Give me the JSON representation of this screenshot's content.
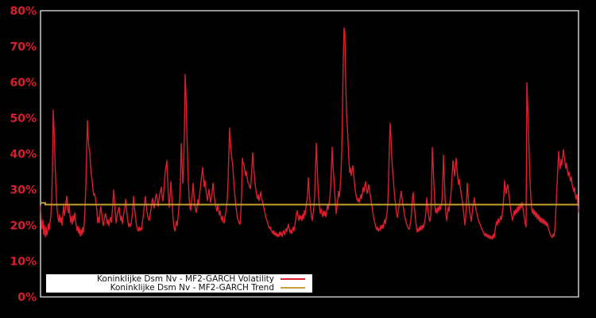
{
  "chart_data": {
    "type": "line",
    "title": "",
    "xlabel": "",
    "ylabel": "",
    "grid": false,
    "background_color": "#000000",
    "plot_border_color": "#c9c9c9",
    "x_axis": {
      "tick_labels_visible": false
    },
    "y_axis": {
      "min": 0,
      "max": 80,
      "tick_step": 10,
      "unit": "%",
      "tick_labels": [
        "0%",
        "10%",
        "20%",
        "30%",
        "40%",
        "50%",
        "60%",
        "70%",
        "80%"
      ],
      "tick_label_color": "#d91f2e"
    },
    "legend": {
      "position": "lower-left",
      "background": "#ffffff",
      "entries": [
        {
          "label": "Koninklijke Dsm Nv - MF2-GARCH Volatility",
          "color": "#d91f2e"
        },
        {
          "label": "Koninklijke Dsm Nv - MF2-GARCH Trend",
          "color": "#c7a130"
        }
      ]
    },
    "series": [
      {
        "name": "Koninklijke Dsm Nv - MF2-GARCH Volatility",
        "color": "#d91f2e",
        "unit": "%",
        "values": [
          25.5,
          21.5,
          19.0,
          21.5,
          17.5,
          20.0,
          16.8,
          19.5,
          17.2,
          18.5,
          20.5,
          18.8,
          21.0,
          22.5,
          27.0,
          36.0,
          52.2,
          47.0,
          40.0,
          33.0,
          27.5,
          24.0,
          22.0,
          21.0,
          23.0,
          20.8,
          22.2,
          20.0,
          23.0,
          25.5,
          22.8,
          24.0,
          26.5,
          28.2,
          25.0,
          23.5,
          25.8,
          23.0,
          20.8,
          22.5,
          20.3,
          22.8,
          21.2,
          23.5,
          21.8,
          19.8,
          18.5,
          19.8,
          17.8,
          19.2,
          17.0,
          18.8,
          17.3,
          19.5,
          18.0,
          20.5,
          24.5,
          31.0,
          40.0,
          49.3,
          44.5,
          41.5,
          40.5,
          36.5,
          34.0,
          32.5,
          30.0,
          28.5,
          28.8,
          27.8,
          26.0,
          24.0,
          20.7,
          22.2,
          20.8,
          24.3,
          25.2,
          23.2,
          21.3,
          19.9,
          21.2,
          22.8,
          23.3,
          21.8,
          20.4,
          21.6,
          19.9,
          21.2,
          22.2,
          20.8,
          23.2,
          26.2,
          29.9,
          27.2,
          23.8,
          20.7,
          22.2,
          23.6,
          24.6,
          25.1,
          22.8,
          21.3,
          22.6,
          20.4,
          22.2,
          23.6,
          24.8,
          27.3,
          25.3,
          22.8,
          20.8,
          19.6,
          20.6,
          19.7,
          20.4,
          22.2,
          24.2,
          28.1,
          25.8,
          23.3,
          21.3,
          19.8,
          18.9,
          18.4,
          19.6,
          18.5,
          19.3,
          18.7,
          20.6,
          22.2,
          24.2,
          26.6,
          28.1,
          25.8,
          23.8,
          22.4,
          21.7,
          21.4,
          23.2,
          24.6,
          26.2,
          27.6,
          26.3,
          24.8,
          26.6,
          28.2,
          28.8,
          26.8,
          25.3,
          27.2,
          28.6,
          29.6,
          30.7,
          28.3,
          26.8,
          29.2,
          32.2,
          35.2,
          36.6,
          38.1,
          32.8,
          27.8,
          25.1,
          28.2,
          32.2,
          28.8,
          24.8,
          21.3,
          19.4,
          18.4,
          19.6,
          21.2,
          19.9,
          22.2,
          24.6,
          27.2,
          31.5,
          42.9,
          37.5,
          31.8,
          35.5,
          46.0,
          62.2,
          57.0,
          47.5,
          39.5,
          32.5,
          27.8,
          24.9,
          24.2,
          26.2,
          28.8,
          31.8,
          28.8,
          25.8,
          24.4,
          23.6,
          25.2,
          27.2,
          25.9,
          28.2,
          30.2,
          32.2,
          34.2,
          36.2,
          33.3,
          30.8,
          32.5,
          30.3,
          28.4,
          26.9,
          28.6,
          30.1,
          27.9,
          26.4,
          28.1,
          29.6,
          31.8,
          29.4,
          27.4,
          25.9,
          24.9,
          23.9,
          25.6,
          24.4,
          22.9,
          24.1,
          22.4,
          21.4,
          22.6,
          20.9,
          20.7,
          22.2,
          23.6,
          25.2,
          27.2,
          32.5,
          40.5,
          47.2,
          43.5,
          40.5,
          38.2,
          36.6,
          32.8,
          29.8,
          27.3,
          25.1,
          23.4,
          21.9,
          21.3,
          20.6,
          20.3,
          23.2,
          28.5,
          38.8,
          37.4,
          36.8,
          35.4,
          33.9,
          35.1,
          33.4,
          31.9,
          31.8,
          30.7,
          30.3,
          32.2,
          36.2,
          40.3,
          36.8,
          34.3,
          31.8,
          29.9,
          28.4,
          27.4,
          28.6,
          26.9,
          27.9,
          29.4,
          27.9,
          26.9,
          25.9,
          24.9,
          23.9,
          22.9,
          21.9,
          21.4,
          20.4,
          19.8,
          19.2,
          19.6,
          18.8,
          18.3,
          17.8,
          18.6,
          17.4,
          18.1,
          17.1,
          17.9,
          16.8,
          17.6,
          16.9,
          18.2,
          17.2,
          18.1,
          16.9,
          17.8,
          18.6,
          17.4,
          18.2,
          19.1,
          18.2,
          19.6,
          20.3,
          18.9,
          17.9,
          18.8,
          17.7,
          18.6,
          19.6,
          18.4,
          19.9,
          21.6,
          23.3,
          24.1,
          22.4,
          21.4,
          22.9,
          21.7,
          22.6,
          21.4,
          23.1,
          21.9,
          24.1,
          22.9,
          25.1,
          26.6,
          28.1,
          33.3,
          29.8,
          26.8,
          24.3,
          22.4,
          21.4,
          23.2,
          25.2,
          28.5,
          35.5,
          43.0,
          37.5,
          31.5,
          27.8,
          25.3,
          23.3,
          24.6,
          23.4,
          22.4,
          24.1,
          22.7,
          23.9,
          22.4,
          24.1,
          25.6,
          24.4,
          26.1,
          27.6,
          30.5,
          35.8,
          41.8,
          36.8,
          33.8,
          29.8,
          26.3,
          23.3,
          25.1,
          27.1,
          29.6,
          27.9,
          30.2,
          34.2,
          40.5,
          52.0,
          67.0,
          75.2,
          74.0,
          61.0,
          51.5,
          47.8,
          43.5,
          38.5,
          34.7,
          36.1,
          33.9,
          35.4,
          36.7,
          34.4,
          31.9,
          29.9,
          28.4,
          27.4,
          26.7,
          27.6,
          26.4,
          27.4,
          28.6,
          27.4,
          29.1,
          30.6,
          29.4,
          31.1,
          32.2,
          30.4,
          28.9,
          29.9,
          31.4,
          29.9,
          28.4,
          26.9,
          25.4,
          23.9,
          22.4,
          21.4,
          20.4,
          19.4,
          18.8,
          19.6,
          18.4,
          19.1,
          18.6,
          19.9,
          19.1,
          20.1,
          19.2,
          20.6,
          21.6,
          20.4,
          22.1,
          23.3,
          26.2,
          32.5,
          42.5,
          48.5,
          44.5,
          38.8,
          35.4,
          32.8,
          29.8,
          27.3,
          25.3,
          23.4,
          22.2,
          23.6,
          25.1,
          26.6,
          28.1,
          29.6,
          27.4,
          25.9,
          24.4,
          22.9,
          21.9,
          20.9,
          20.2,
          19.6,
          19.1,
          18.9,
          20.1,
          21.6,
          24.1,
          27.6,
          29.2,
          26.4,
          23.9,
          21.4,
          19.6,
          18.1,
          19.1,
          18.3,
          19.6,
          18.6,
          19.9,
          18.8,
          20.1,
          19.3,
          20.6,
          21.6,
          24.1,
          27.7,
          25.4,
          23.4,
          21.9,
          21.1,
          22.6,
          28.5,
          41.8,
          37.5,
          31.5,
          27.4,
          23.6,
          24.6,
          23.4,
          25.1,
          23.9,
          25.4,
          24.4,
          25.6,
          26.6,
          30.5,
          39.6,
          34.5,
          27.8,
          23.4,
          21.4,
          23.2,
          25.1,
          23.9,
          26.1,
          27.6,
          30.2,
          34.2,
          38.1,
          35.8,
          33.8,
          36.4,
          38.8,
          35.8,
          33.4,
          31.4,
          32.9,
          30.9,
          29.4,
          27.9,
          26.4,
          24.4,
          22.4,
          20.1,
          22.2,
          26.2,
          31.8,
          28.8,
          25.9,
          23.9,
          22.4,
          21.1,
          23.1,
          24.9,
          26.4,
          27.7,
          25.9,
          24.4,
          23.4,
          22.4,
          21.4,
          20.9,
          20.4,
          19.8,
          19.2,
          18.8,
          18.2,
          17.6,
          17.1,
          17.8,
          16.8,
          17.6,
          16.6,
          17.3,
          16.3,
          17.1,
          16.2,
          17.0,
          16.2,
          17.6,
          16.7,
          18.6,
          20.1,
          21.1,
          20.1,
          21.9,
          20.8,
          21.6,
          22.6,
          21.6,
          23.1,
          25.1,
          28.2,
          32.5,
          30.4,
          28.9,
          30.6,
          31.4,
          29.4,
          27.4,
          25.4,
          23.9,
          22.6,
          21.4,
          22.6,
          24.1,
          22.9,
          24.4,
          23.4,
          25.1,
          23.9,
          25.4,
          24.4,
          26.1,
          24.9,
          26.4,
          24.9,
          23.4,
          21.9,
          20.4,
          19.6,
          59.9,
          54.0,
          47.0,
          39.5,
          32.5,
          27.8,
          24.7,
          23.4,
          24.6,
          22.9,
          24.1,
          22.4,
          23.6,
          21.9,
          23.1,
          21.4,
          22.6,
          20.9,
          22.1,
          20.7,
          21.9,
          20.4,
          21.6,
          20.1,
          21.1,
          19.8,
          20.6,
          19.2,
          18.5,
          17.8,
          17.2,
          16.8,
          16.6,
          17.6,
          16.9,
          18.1,
          21.5,
          26.5,
          31.4,
          36.2,
          40.7,
          37.8,
          35.8,
          38.4,
          36.8,
          39.1,
          41.2,
          39.4,
          37.4,
          35.9,
          37.4,
          35.4,
          33.9,
          34.9,
          33.4,
          32.4,
          33.6,
          31.4,
          30.4,
          29.4,
          30.6,
          28.4,
          27.4,
          28.6,
          25.9,
          23.6
        ]
      },
      {
        "name": "Koninklijke Dsm Nv - MF2-GARCH Trend",
        "color": "#c7a130",
        "unit": "%",
        "points": [
          [
            0.0,
            26.3
          ],
          [
            0.0089,
            26.3
          ],
          [
            0.0089,
            25.8
          ],
          [
            1.0,
            25.8
          ]
        ]
      }
    ]
  }
}
